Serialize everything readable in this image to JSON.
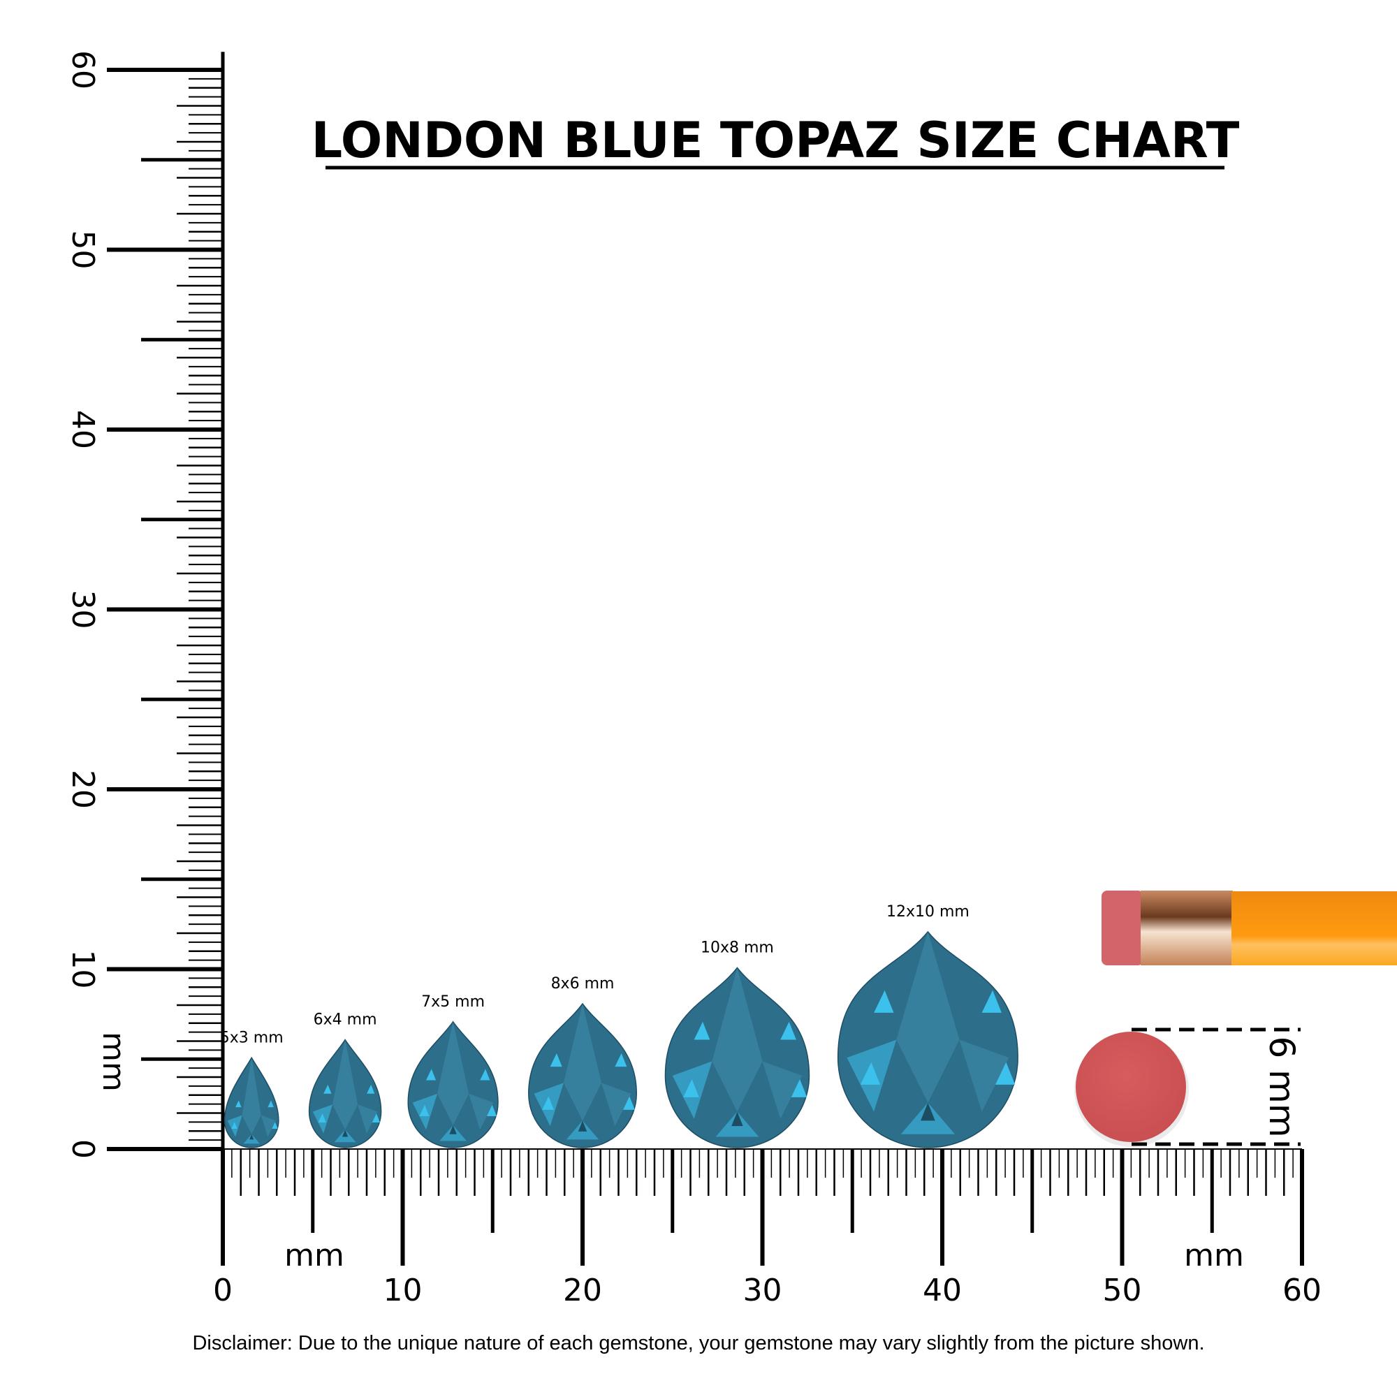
{
  "title": "LONDON BLUE TOPAZ SIZE CHART",
  "disclaimer": "Disclaimer: Due to the unique nature of each gemstone, your gemstone may vary slightly from the picture shown.",
  "colors": {
    "gem_base": "#2d6f8b",
    "gem_highlight": "#3cc0ec",
    "gem_dark": "#1d4d63",
    "eraser_ball": "#d2585a",
    "pencil_body": "#f7941d",
    "ferrule": "#d9a27a"
  },
  "reference": {
    "label": "6 mm",
    "object": "eraser-ball",
    "diameter_mm": 6
  },
  "chart_data": {
    "type": "table",
    "title": "LONDON BLUE TOPAZ SIZE CHART",
    "x_axis": {
      "label": "mm",
      "range": [
        0,
        60
      ],
      "ticks": [
        "0",
        "10",
        "20",
        "30",
        "40",
        "50",
        "60"
      ]
    },
    "y_axis": {
      "label": "mm",
      "range": [
        0,
        60
      ],
      "ticks": [
        "0",
        "10",
        "20",
        "30",
        "40",
        "50",
        "60"
      ]
    },
    "gems": [
      {
        "label": "5x3 mm",
        "length_mm": 5,
        "width_mm": 3,
        "center_mm": 1.6
      },
      {
        "label": "6x4 mm",
        "length_mm": 6,
        "width_mm": 4,
        "center_mm": 6.8
      },
      {
        "label": "7x5 mm",
        "length_mm": 7,
        "width_mm": 5,
        "center_mm": 12.8
      },
      {
        "label": "8x6 mm",
        "length_mm": 8,
        "width_mm": 6,
        "center_mm": 20.0
      },
      {
        "label": "10x8 mm",
        "length_mm": 10,
        "width_mm": 8,
        "center_mm": 28.6
      },
      {
        "label": "12x10 mm",
        "length_mm": 12,
        "width_mm": 10,
        "center_mm": 39.2
      }
    ]
  }
}
